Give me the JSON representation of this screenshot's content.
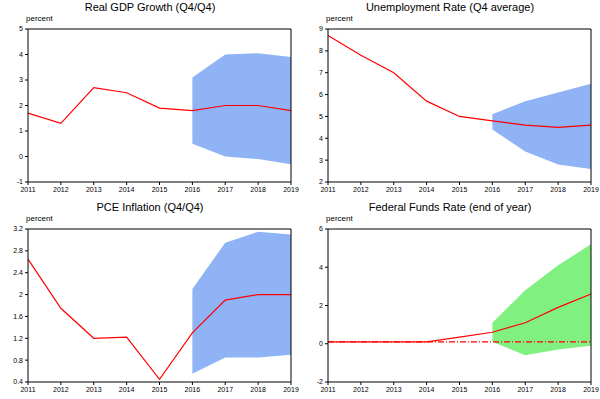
{
  "chart_data": [
    {
      "type": "line",
      "title": "Real GDP Growth (Q4/Q4)",
      "ylabel": "percent",
      "categories": [
        "2011",
        "2012",
        "2013",
        "2014",
        "2015",
        "2016",
        "2017",
        "2018",
        "2019"
      ],
      "ylim": [
        -1,
        5
      ],
      "yticks": [
        -1,
        0,
        1,
        2,
        3,
        4,
        5
      ],
      "grid": false,
      "series": [
        {
          "type": "band",
          "color": "#8fb3f5",
          "low": [
            null,
            null,
            null,
            null,
            null,
            0.5,
            0.0,
            -0.1,
            -0.3
          ],
          "high": [
            null,
            null,
            null,
            null,
            null,
            3.1,
            4.0,
            4.05,
            3.9
          ]
        },
        {
          "type": "line",
          "color": "#ff0000",
          "line_style": "solid",
          "values": [
            1.7,
            1.3,
            2.7,
            2.5,
            1.9,
            1.8,
            2.0,
            2.0,
            1.8
          ]
        }
      ]
    },
    {
      "type": "line",
      "title": "Unemployment Rate (Q4 average)",
      "ylabel": "percent",
      "categories": [
        "2011",
        "2012",
        "2013",
        "2014",
        "2015",
        "2016",
        "2017",
        "2018",
        "2019"
      ],
      "ylim": [
        2,
        9
      ],
      "yticks": [
        2,
        3,
        4,
        5,
        6,
        7,
        8,
        9
      ],
      "grid": false,
      "series": [
        {
          "type": "band",
          "color": "#8fb3f5",
          "low": [
            null,
            null,
            null,
            null,
            null,
            4.4,
            3.4,
            2.8,
            2.6
          ],
          "high": [
            null,
            null,
            null,
            null,
            null,
            5.1,
            5.7,
            6.1,
            6.5
          ]
        },
        {
          "type": "line",
          "color": "#ff0000",
          "line_style": "solid",
          "values": [
            8.7,
            7.8,
            7.0,
            5.7,
            5.0,
            4.8,
            4.6,
            4.5,
            4.6
          ]
        }
      ]
    },
    {
      "type": "line",
      "title": "PCE Inflation (Q4/Q4)",
      "ylabel": "percent",
      "categories": [
        "2011",
        "2012",
        "2013",
        "2014",
        "2015",
        "2016",
        "2017",
        "2018",
        "2019"
      ],
      "ylim": [
        0.4,
        3.2
      ],
      "yticks": [
        0.4,
        0.8,
        1.2,
        1.6,
        2,
        2.4,
        2.8,
        3.2
      ],
      "grid": false,
      "series": [
        {
          "type": "band",
          "color": "#8fb3f5",
          "low": [
            null,
            null,
            null,
            null,
            null,
            0.55,
            0.85,
            0.85,
            0.9
          ],
          "high": [
            null,
            null,
            null,
            null,
            null,
            2.1,
            2.95,
            3.15,
            3.1
          ]
        },
        {
          "type": "line",
          "color": "#ff0000",
          "line_style": "solid",
          "values": [
            2.65,
            1.75,
            1.2,
            1.22,
            0.45,
            1.3,
            1.9,
            2.0,
            2.0
          ]
        }
      ]
    },
    {
      "type": "line",
      "title": "Federal Funds Rate (end of year)",
      "ylabel": "percent",
      "categories": [
        "2011",
        "2012",
        "2013",
        "2014",
        "2015",
        "2016",
        "2017",
        "2018",
        "2019"
      ],
      "ylim": [
        -2,
        6
      ],
      "yticks": [
        -2,
        0,
        2,
        4,
        6
      ],
      "grid": false,
      "series": [
        {
          "type": "band",
          "color": "#80f080",
          "low": [
            null,
            null,
            null,
            null,
            null,
            0.1,
            -0.6,
            -0.3,
            -0.1
          ],
          "high": [
            null,
            null,
            null,
            null,
            null,
            1.1,
            2.8,
            4.1,
            5.2
          ]
        },
        {
          "type": "line",
          "color": "#ff0000",
          "line_style": "dashdot",
          "values": [
            0.1,
            0.1,
            0.1,
            0.1,
            0.1,
            0.1,
            0.1,
            0.1,
            0.1
          ]
        },
        {
          "type": "line",
          "color": "#ff0000",
          "line_style": "solid",
          "values": [
            0.1,
            0.1,
            0.1,
            0.1,
            0.35,
            0.6,
            1.1,
            1.9,
            2.6
          ]
        }
      ]
    }
  ]
}
